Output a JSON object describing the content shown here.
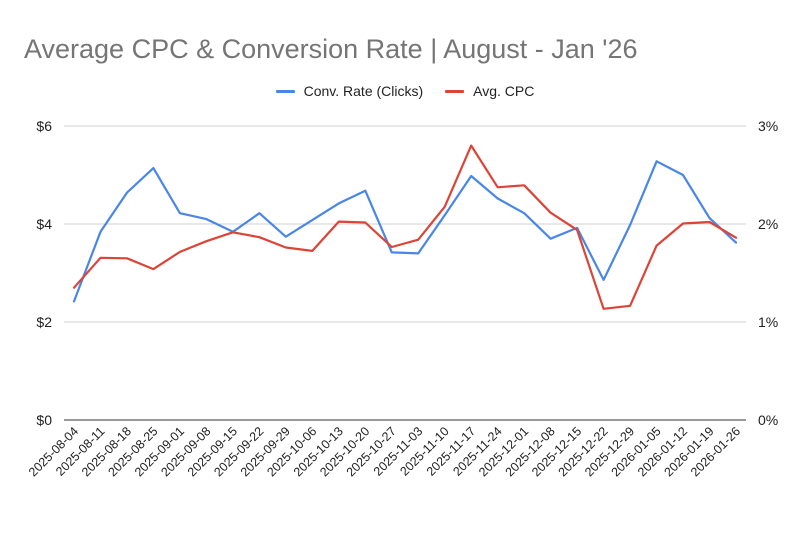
{
  "chart_data": {
    "type": "line",
    "title": "Average CPC & Conversion Rate | August - Jan '26",
    "categories": [
      "2025-08-04",
      "2025-08-11",
      "2025-08-18",
      "2025-08-25",
      "2025-09-01",
      "2025-09-08",
      "2025-09-15",
      "2025-09-22",
      "2025-09-29",
      "2025-10-06",
      "2025-10-13",
      "2025-10-20",
      "2025-10-27",
      "2025-11-03",
      "2025-11-10",
      "2025-11-17",
      "2025-11-24",
      "2025-12-01",
      "2025-12-08",
      "2025-12-15",
      "2025-12-22",
      "2025-12-29",
      "2026-01-05",
      "2026-01-12",
      "2026-01-19",
      "2026-01-26"
    ],
    "series": [
      {
        "name": "Conv. Rate (Clicks)",
        "axis": "right",
        "color": "#4a86e8",
        "values": [
          1.21,
          1.92,
          2.32,
          2.57,
          2.11,
          2.05,
          1.92,
          2.11,
          1.87,
          2.04,
          2.21,
          2.34,
          1.71,
          1.7,
          2.09,
          2.49,
          2.26,
          2.11,
          1.85,
          1.96,
          1.43,
          1.99,
          2.64,
          2.5,
          2.06,
          1.81
        ]
      },
      {
        "name": "Avg. CPC",
        "axis": "left",
        "color": "#db4437",
        "values": [
          2.7,
          3.31,
          3.3,
          3.08,
          3.43,
          3.65,
          3.83,
          3.73,
          3.52,
          3.45,
          4.05,
          4.03,
          3.53,
          3.68,
          4.35,
          5.6,
          4.75,
          4.79,
          4.23,
          3.88,
          2.27,
          2.33,
          3.56,
          4.01,
          4.04,
          3.72
        ]
      }
    ],
    "y_left": {
      "ylim": [
        0,
        6
      ],
      "ticks": [
        0,
        2,
        4,
        6
      ],
      "tick_labels": [
        "$0",
        "$2",
        "$4",
        "$6"
      ]
    },
    "y_right": {
      "ylim": [
        0,
        3
      ],
      "ticks": [
        0,
        1,
        2,
        3
      ],
      "tick_labels": [
        "0%",
        "1%",
        "2%",
        "3%"
      ]
    },
    "legend_position": "top-center",
    "grid": true
  }
}
